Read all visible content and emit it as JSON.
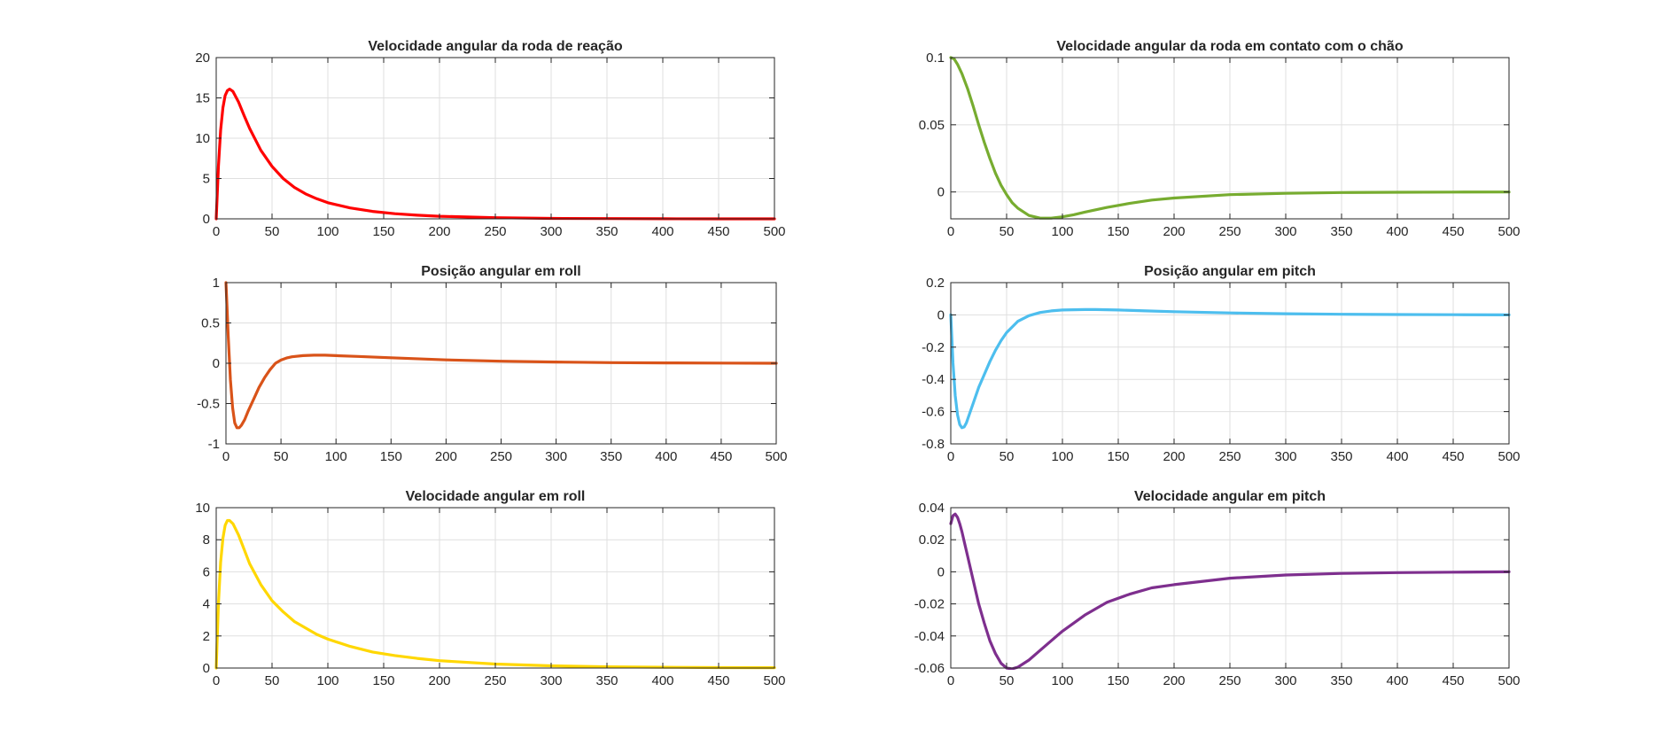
{
  "figure": {
    "background": "#ffffff"
  },
  "chart_data": [
    {
      "type": "line",
      "title": "Velocidade angular da roda de reação",
      "xlabel": "",
      "ylabel": "",
      "xlim": [
        0,
        500
      ],
      "ylim": [
        0,
        20
      ],
      "xticks": [
        0,
        50,
        100,
        150,
        200,
        250,
        300,
        350,
        400,
        450,
        500
      ],
      "yticks": [
        0,
        5,
        10,
        15,
        20
      ],
      "xtick_labels": [
        "0",
        "50",
        "100",
        "150",
        "200",
        "250",
        "300",
        "350",
        "400",
        "450",
        "500"
      ],
      "ytick_labels": [
        "0",
        "5",
        "10",
        "15",
        "20"
      ],
      "grid": true,
      "series": [
        {
          "color": "#ff0000",
          "x": [
            0,
            2,
            4,
            6,
            8,
            10,
            12,
            15,
            20,
            25,
            30,
            40,
            50,
            60,
            70,
            80,
            90,
            100,
            120,
            140,
            160,
            180,
            200,
            250,
            300,
            350,
            400,
            450,
            500
          ],
          "y": [
            0,
            6.5,
            11,
            13.8,
            15.3,
            15.9,
            16.1,
            15.8,
            14.5,
            12.8,
            11.2,
            8.5,
            6.5,
            5.0,
            3.9,
            3.1,
            2.5,
            2.0,
            1.35,
            0.92,
            0.64,
            0.45,
            0.32,
            0.14,
            0.06,
            0.03,
            0.01,
            0.0,
            0.0
          ]
        }
      ]
    },
    {
      "type": "line",
      "title": "Velocidade angular da roda em contato com o chão",
      "xlabel": "",
      "ylabel": "",
      "xlim": [
        0,
        500
      ],
      "ylim": [
        -0.02,
        0.1
      ],
      "xticks": [
        0,
        50,
        100,
        150,
        200,
        250,
        300,
        350,
        400,
        450,
        500
      ],
      "yticks": [
        0,
        0.05,
        0.1
      ],
      "xtick_labels": [
        "0",
        "50",
        "100",
        "150",
        "200",
        "250",
        "300",
        "350",
        "400",
        "450",
        "500"
      ],
      "ytick_labels": [
        "0",
        "0.05",
        "0.1"
      ],
      "grid": true,
      "series": [
        {
          "color": "#77ac30",
          "x": [
            0,
            3,
            6,
            10,
            15,
            20,
            25,
            30,
            35,
            40,
            45,
            50,
            55,
            60,
            70,
            80,
            90,
            100,
            110,
            120,
            140,
            160,
            180,
            200,
            250,
            300,
            350,
            400,
            450,
            500
          ],
          "y": [
            0.1,
            0.099,
            0.095,
            0.088,
            0.077,
            0.064,
            0.05,
            0.037,
            0.025,
            0.014,
            0.005,
            -0.002,
            -0.008,
            -0.012,
            -0.0175,
            -0.0195,
            -0.0195,
            -0.0185,
            -0.017,
            -0.015,
            -0.0115,
            -0.0085,
            -0.006,
            -0.0045,
            -0.002,
            -0.001,
            -0.0004,
            -0.0002,
            -0.0001,
            0.0
          ]
        }
      ]
    },
    {
      "type": "line",
      "title": "Posição angular em roll",
      "xlabel": "",
      "ylabel": "",
      "xlim": [
        0,
        500
      ],
      "ylim": [
        -1,
        1
      ],
      "xticks": [
        0,
        50,
        100,
        150,
        200,
        250,
        300,
        350,
        400,
        450,
        500
      ],
      "yticks": [
        -1,
        -0.5,
        0,
        0.5,
        1
      ],
      "xtick_labels": [
        "0",
        "50",
        "100",
        "150",
        "200",
        "250",
        "300",
        "350",
        "400",
        "450",
        "500"
      ],
      "ytick_labels": [
        "-1",
        "-0.5",
        "0",
        "0.5",
        "1"
      ],
      "grid": true,
      "series": [
        {
          "color": "#d95319",
          "x": [
            0,
            1,
            2,
            4,
            6,
            8,
            10,
            12,
            14,
            17,
            20,
            25,
            30,
            35,
            40,
            45,
            50,
            55,
            60,
            70,
            80,
            90,
            100,
            120,
            150,
            200,
            250,
            300,
            350,
            400,
            450,
            500
          ],
          "y": [
            1.0,
            0.7,
            0.35,
            -0.2,
            -0.55,
            -0.74,
            -0.8,
            -0.8,
            -0.77,
            -0.7,
            -0.6,
            -0.45,
            -0.3,
            -0.18,
            -0.08,
            0.0,
            0.04,
            0.065,
            0.08,
            0.095,
            0.1,
            0.1,
            0.095,
            0.085,
            0.068,
            0.042,
            0.025,
            0.015,
            0.008,
            0.004,
            0.002,
            0.0
          ]
        }
      ]
    },
    {
      "type": "line",
      "title": "Posição angular em pitch",
      "xlabel": "",
      "ylabel": "",
      "xlim": [
        0,
        500
      ],
      "ylim": [
        -0.8,
        0.2
      ],
      "xticks": [
        0,
        50,
        100,
        150,
        200,
        250,
        300,
        350,
        400,
        450,
        500
      ],
      "yticks": [
        -0.8,
        -0.6,
        -0.4,
        -0.2,
        0,
        0.2
      ],
      "xtick_labels": [
        "0",
        "50",
        "100",
        "150",
        "200",
        "250",
        "300",
        "350",
        "400",
        "450",
        "500"
      ],
      "ytick_labels": [
        "-0.8",
        "-0.6",
        "-0.4",
        "-0.2",
        "0",
        "0.2"
      ],
      "grid": true,
      "series": [
        {
          "color": "#4dbeee",
          "x": [
            0,
            2,
            4,
            6,
            8,
            10,
            12,
            14,
            17,
            20,
            25,
            30,
            35,
            40,
            45,
            50,
            60,
            70,
            80,
            90,
            100,
            110,
            120,
            130,
            150,
            175,
            200,
            250,
            300,
            350,
            400,
            450,
            500
          ],
          "y": [
            0,
            -0.3,
            -0.5,
            -0.62,
            -0.68,
            -0.7,
            -0.695,
            -0.67,
            -0.61,
            -0.55,
            -0.45,
            -0.37,
            -0.29,
            -0.22,
            -0.16,
            -0.11,
            -0.04,
            -0.005,
            0.015,
            0.025,
            0.03,
            0.032,
            0.033,
            0.033,
            0.03,
            0.025,
            0.02,
            0.012,
            0.007,
            0.004,
            0.002,
            0.001,
            0.0
          ]
        }
      ]
    },
    {
      "type": "line",
      "title": "Velocidade angular em roll",
      "xlabel": "",
      "ylabel": "",
      "xlim": [
        0,
        500
      ],
      "ylim": [
        0,
        10
      ],
      "xticks": [
        0,
        50,
        100,
        150,
        200,
        250,
        300,
        350,
        400,
        450,
        500
      ],
      "yticks": [
        0,
        2,
        4,
        6,
        8,
        10
      ],
      "xtick_labels": [
        "0",
        "50",
        "100",
        "150",
        "200",
        "250",
        "300",
        "350",
        "400",
        "450",
        "500"
      ],
      "ytick_labels": [
        "0",
        "2",
        "4",
        "6",
        "8",
        "10"
      ],
      "grid": true,
      "series": [
        {
          "color": "#ffd700",
          "x": [
            0,
            2,
            4,
            6,
            8,
            10,
            12,
            15,
            20,
            25,
            30,
            40,
            50,
            60,
            70,
            80,
            90,
            100,
            120,
            140,
            160,
            180,
            200,
            250,
            300,
            350,
            400,
            450,
            500
          ],
          "y": [
            0,
            4.0,
            6.6,
            8.1,
            8.9,
            9.2,
            9.2,
            9.0,
            8.3,
            7.4,
            6.5,
            5.2,
            4.2,
            3.5,
            2.9,
            2.5,
            2.1,
            1.8,
            1.35,
            1.0,
            0.78,
            0.6,
            0.46,
            0.25,
            0.14,
            0.08,
            0.05,
            0.03,
            0.02
          ]
        }
      ]
    },
    {
      "type": "line",
      "title": "Velocidade angular em pitch",
      "xlabel": "",
      "ylabel": "",
      "xlim": [
        0,
        500
      ],
      "ylim": [
        -0.06,
        0.04
      ],
      "xticks": [
        0,
        50,
        100,
        150,
        200,
        250,
        300,
        350,
        400,
        450,
        500
      ],
      "yticks": [
        -0.06,
        -0.04,
        -0.02,
        0,
        0.02,
        0.04
      ],
      "xtick_labels": [
        "0",
        "50",
        "100",
        "150",
        "200",
        "250",
        "300",
        "350",
        "400",
        "450",
        "500"
      ],
      "ytick_labels": [
        "-0.06",
        "-0.04",
        "-0.02",
        "0",
        "0.02",
        "0.04"
      ],
      "grid": true,
      "series": [
        {
          "color": "#7e2f8e",
          "x": [
            0,
            2,
            4,
            6,
            8,
            10,
            12,
            15,
            20,
            25,
            30,
            35,
            40,
            45,
            50,
            55,
            60,
            70,
            80,
            90,
            100,
            120,
            140,
            160,
            180,
            200,
            250,
            300,
            350,
            400,
            450,
            500
          ],
          "y": [
            0.03,
            0.035,
            0.036,
            0.034,
            0.03,
            0.025,
            0.019,
            0.01,
            -0.005,
            -0.02,
            -0.032,
            -0.043,
            -0.051,
            -0.057,
            -0.06,
            -0.0605,
            -0.0595,
            -0.055,
            -0.049,
            -0.043,
            -0.037,
            -0.027,
            -0.019,
            -0.014,
            -0.01,
            -0.008,
            -0.004,
            -0.002,
            -0.001,
            -0.0005,
            -0.0002,
            0.0
          ]
        }
      ]
    }
  ]
}
